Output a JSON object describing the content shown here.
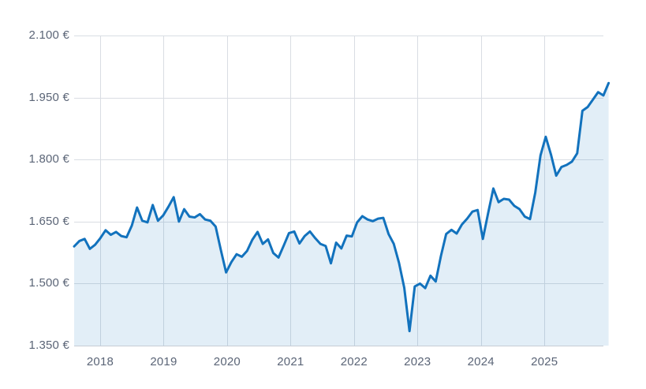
{
  "chart_data": {
    "type": "area",
    "title": "",
    "legend": false,
    "grid": true,
    "x_axis": {
      "range": [
        2017.59,
        2025.93
      ],
      "ticks": [
        2018,
        2019,
        2020,
        2021,
        2022,
        2023,
        2024,
        2025
      ],
      "tick_labels": [
        "2018",
        "2019",
        "2020",
        "2021",
        "2022",
        "2023",
        "2024",
        "2025"
      ]
    },
    "y_axis": {
      "range": [
        1350,
        2100
      ],
      "ticks": [
        1350,
        1500,
        1650,
        1800,
        1950,
        2100
      ],
      "tick_labels": [
        "1.350 €",
        "1.500 €",
        "1.650 €",
        "1.800 €",
        "1.950 €",
        "2.100 €"
      ]
    },
    "series": [
      {
        "name": "value-eur",
        "x_start": 2017.59,
        "x_step": 0.08257,
        "values": [
          1590,
          1603,
          1608,
          1584,
          1594,
          1610,
          1629,
          1618,
          1625,
          1615,
          1612,
          1640,
          1684,
          1652,
          1648,
          1690,
          1652,
          1665,
          1686,
          1709,
          1650,
          1680,
          1662,
          1660,
          1668,
          1655,
          1652,
          1638,
          1581,
          1527,
          1552,
          1571,
          1565,
          1579,
          1606,
          1625,
          1596,
          1607,
          1574,
          1563,
          1592,
          1622,
          1626,
          1597,
          1615,
          1626,
          1610,
          1596,
          1591,
          1549,
          1599,
          1585,
          1616,
          1614,
          1648,
          1663,
          1655,
          1651,
          1657,
          1659,
          1620,
          1596,
          1550,
          1490,
          1385,
          1493,
          1500,
          1489,
          1519,
          1505,
          1567,
          1620,
          1630,
          1621,
          1643,
          1657,
          1674,
          1678,
          1608,
          1670,
          1730,
          1697,
          1705,
          1703,
          1688,
          1680,
          1662,
          1656,
          1720,
          1810,
          1855,
          1812,
          1761,
          1782,
          1787,
          1795,
          1815,
          1918,
          1927,
          1945,
          1963,
          1955,
          1985
        ]
      }
    ],
    "colors": {
      "line": "#1272bd",
      "fill": "#1272bd",
      "fill_opacity": 0.12,
      "grid": "#d9dde3",
      "axis_line": "#c7ccd5",
      "tick_text": "#5b6577"
    }
  }
}
